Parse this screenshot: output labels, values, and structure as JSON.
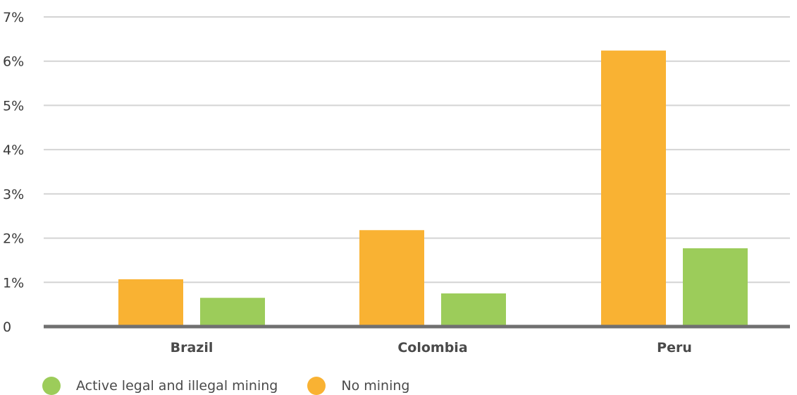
{
  "chart_data": {
    "type": "bar",
    "categories": [
      "Brazil",
      "Colombia",
      "Peru"
    ],
    "series": [
      {
        "name": "No mining",
        "color": "#f9b233",
        "values": [
          1.07,
          2.18,
          6.24
        ]
      },
      {
        "name": "Active legal and illegal mining",
        "color": "#9ccc5a",
        "values": [
          0.65,
          0.75,
          1.77
        ]
      }
    ],
    "ylim": [
      0,
      7
    ],
    "yticks": [
      {
        "value": 0,
        "label": "0"
      },
      {
        "value": 1,
        "label": "1%"
      },
      {
        "value": 2,
        "label": "2%"
      },
      {
        "value": 3,
        "label": "3%"
      },
      {
        "value": 4,
        "label": "4%"
      },
      {
        "value": 5,
        "label": "5%"
      },
      {
        "value": 6,
        "label": "6%"
      },
      {
        "value": 7,
        "label": "7%"
      }
    ],
    "grid": true,
    "legend_position": "bottom-left",
    "legend_order": [
      "Active legal and illegal mining",
      "No mining"
    ],
    "title": "",
    "xlabel": "",
    "ylabel": ""
  }
}
